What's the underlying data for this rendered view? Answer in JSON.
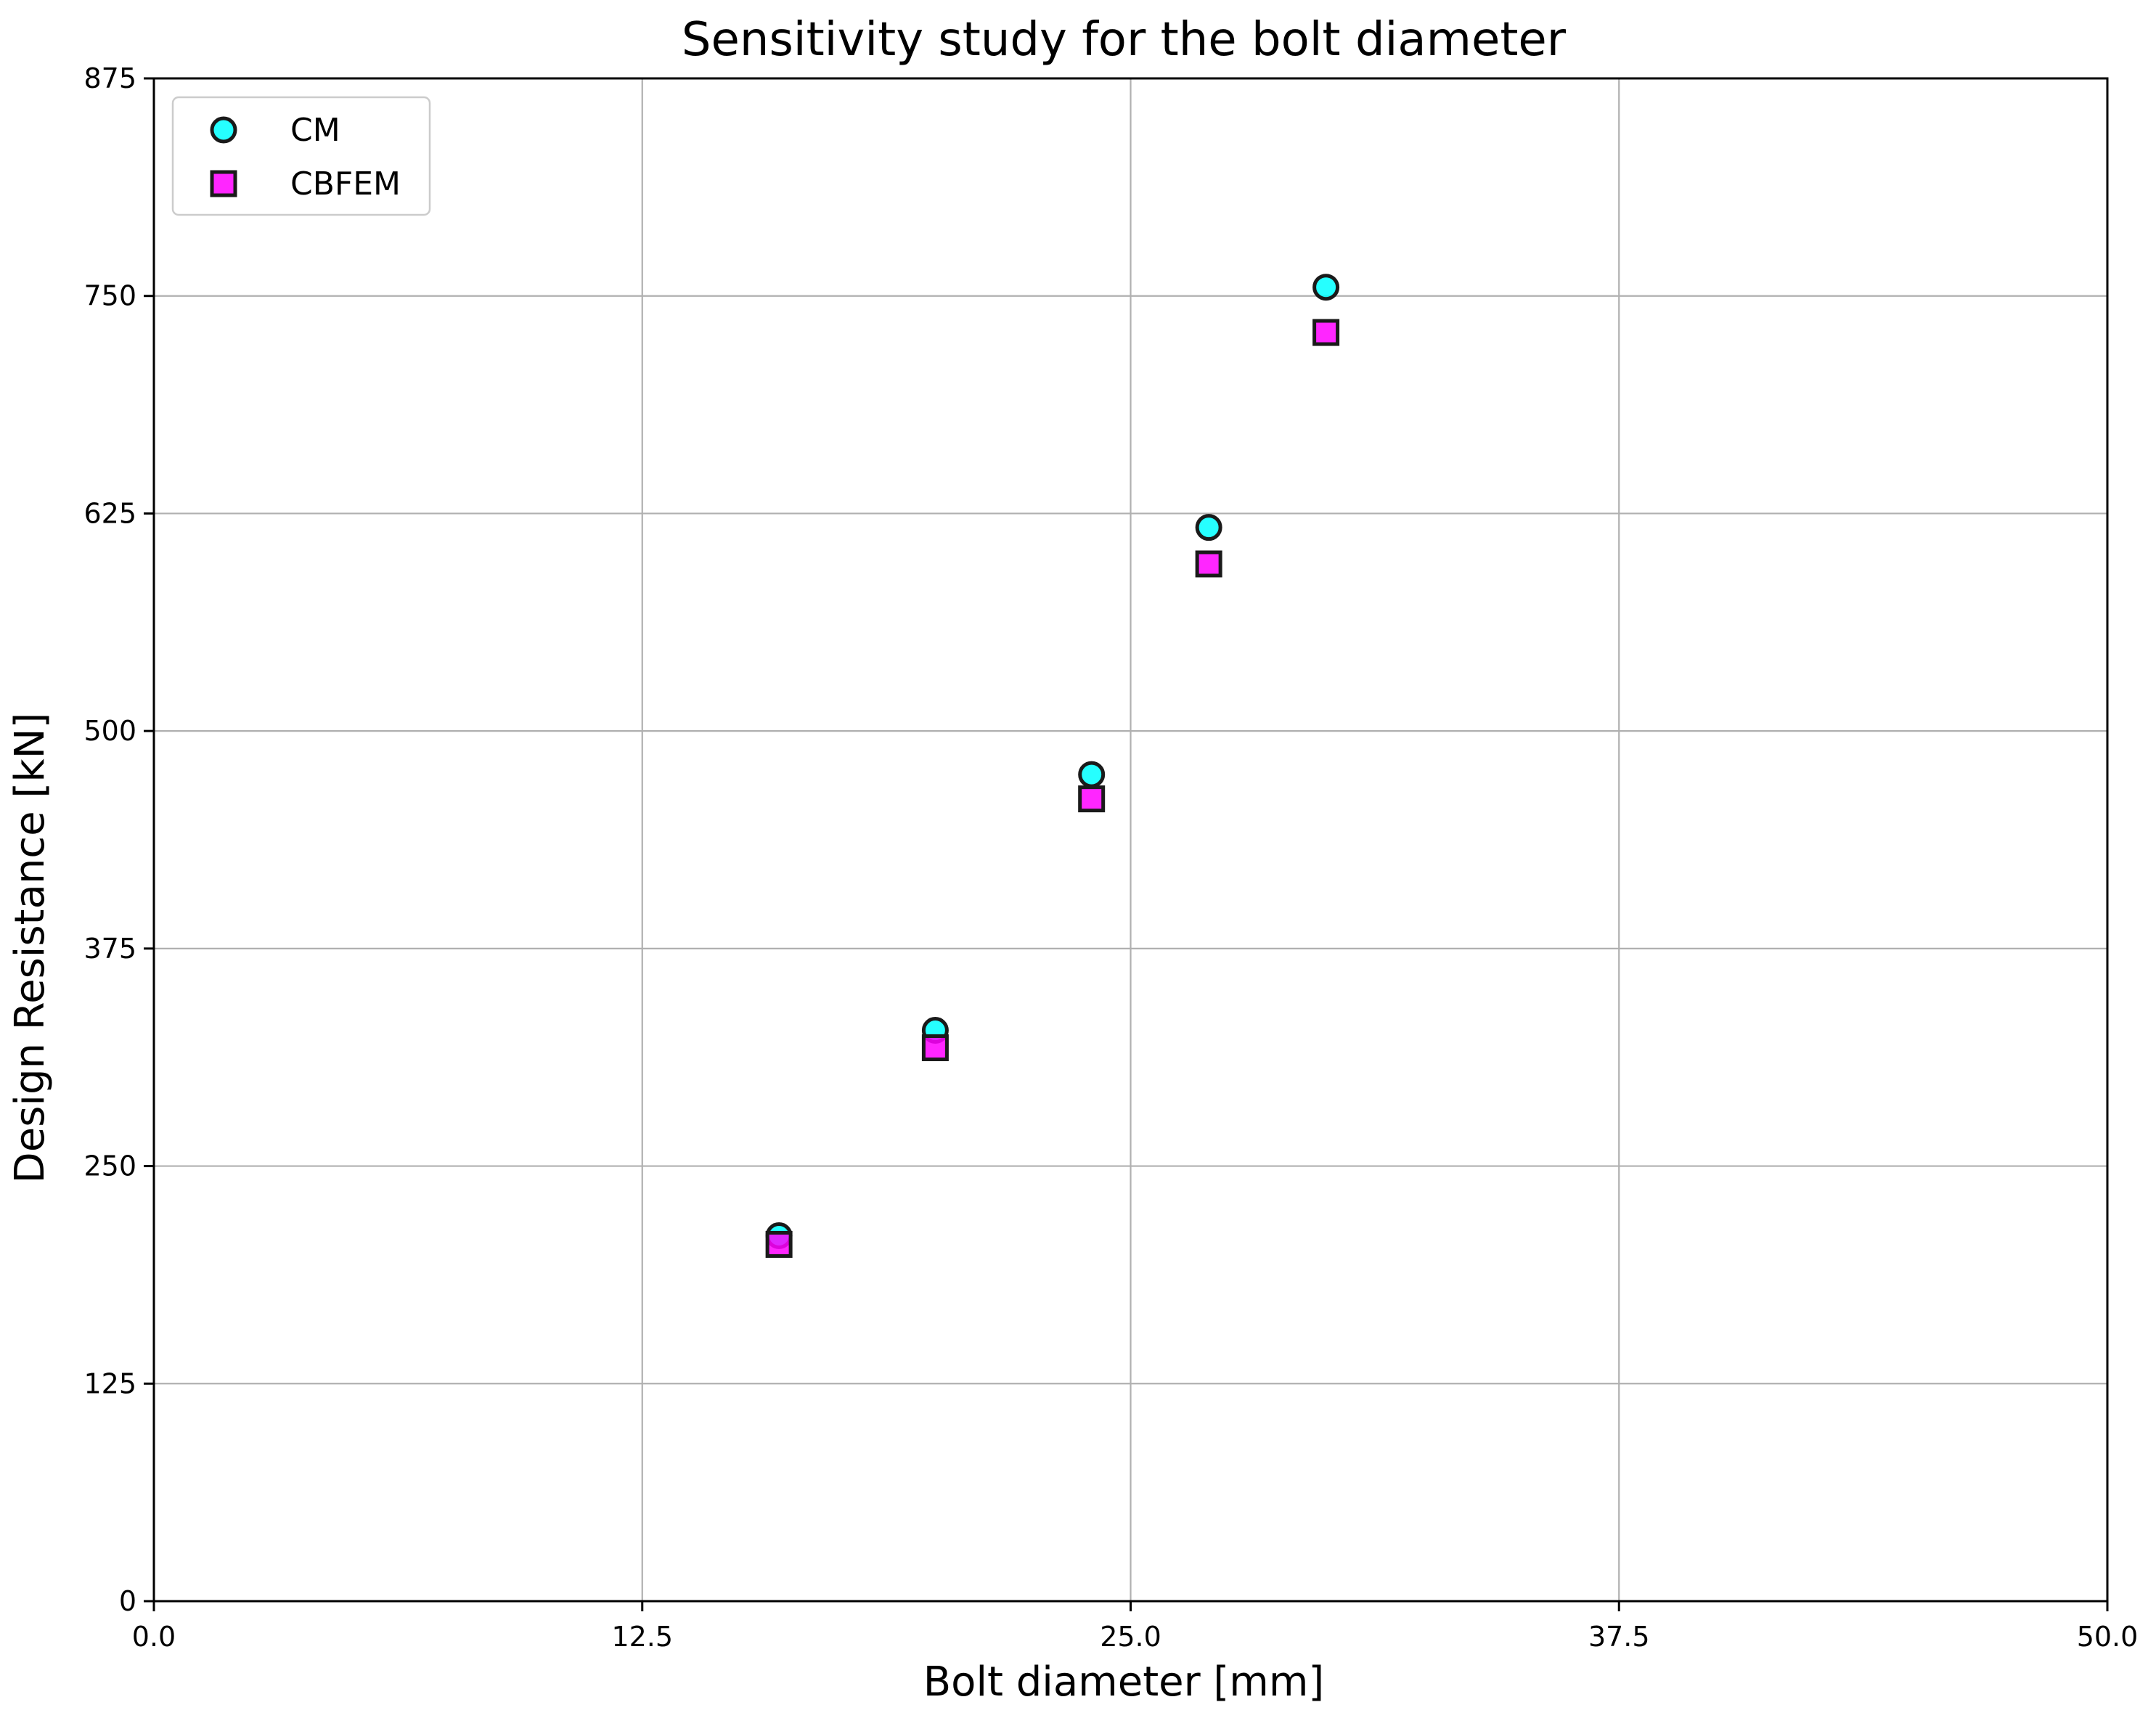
{
  "chart_data": {
    "type": "scatter",
    "title": "Sensitivity study for the bolt diameter",
    "xlabel": "Bolt diameter [mm]",
    "ylabel": "Design Resistance [kN]",
    "xlim": [
      0,
      50
    ],
    "ylim": [
      0,
      875
    ],
    "xticks": [
      0.0,
      12.5,
      25.0,
      37.5,
      50.0
    ],
    "xtick_labels": [
      "0.0",
      "12.5",
      "25.0",
      "37.5",
      "50.0"
    ],
    "yticks": [
      0,
      125,
      250,
      375,
      500,
      625,
      750,
      875
    ],
    "ytick_labels": [
      "0",
      "125",
      "250",
      "375",
      "500",
      "625",
      "750",
      "875"
    ],
    "grid": true,
    "legend_position": "top-left",
    "series": [
      {
        "name": "CM",
        "marker": "circle",
        "color": "#00FFFF",
        "edge_color": "#1a1a1a",
        "x": [
          16,
          20,
          24,
          27,
          30
        ],
        "y": [
          210,
          328,
          475,
          617,
          755
        ]
      },
      {
        "name": "CBFEM",
        "marker": "square",
        "color": "#FF00FF",
        "edge_color": "#1a1a1a",
        "x": [
          16,
          20,
          24,
          27,
          30
        ],
        "y": [
          205,
          318,
          461,
          596,
          729
        ]
      }
    ]
  },
  "colors": {
    "grid": "#b0b0b0",
    "axes": "#000000",
    "legend_frame": "#cccccc"
  }
}
